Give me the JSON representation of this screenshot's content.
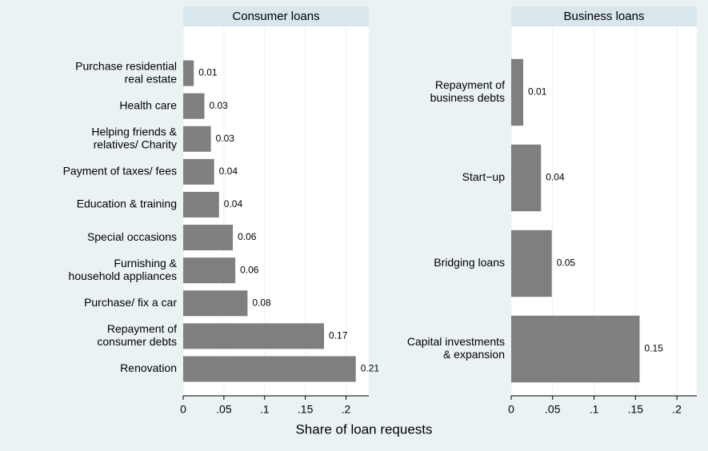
{
  "chart_data": [
    {
      "type": "barh",
      "title": "Consumer loans",
      "categories": [
        [
          "Purchase residential",
          "real estate"
        ],
        [
          "Health care"
        ],
        [
          "Helping friends &",
          "relatives/ Charity"
        ],
        [
          "Payment of taxes/ fees"
        ],
        [
          "Education & training"
        ],
        [
          "Special occasions"
        ],
        [
          "Furnishing &",
          "household appliances"
        ],
        [
          "Purchase/ fix a car"
        ],
        [
          "Repayment of",
          "consumer debts"
        ],
        [
          "Renovation"
        ]
      ],
      "values": [
        0.013,
        0.026,
        0.034,
        0.038,
        0.044,
        0.061,
        0.064,
        0.079,
        0.173,
        0.212
      ],
      "value_labels": [
        "0.01",
        "0.03",
        "0.03",
        "0.04",
        "0.04",
        "0.06",
        "0.06",
        "0.08",
        "0.17",
        "0.21"
      ],
      "color": "#7f7f7f",
      "xlim": [
        0,
        0.228
      ],
      "xticks": [
        0,
        {
          "value": 0.05,
          "label": ".05"
        },
        {
          "value": 0.1,
          "label": ".1"
        },
        {
          "value": 0.15,
          "label": ".15"
        },
        {
          "value": 0.2,
          "label": ".2"
        }
      ],
      "grid": true
    },
    {
      "type": "barh",
      "title": "Business loans",
      "categories": [
        [
          "Repayment of",
          "business debts"
        ],
        [
          "Start−up"
        ],
        [
          "Bridging loans"
        ],
        [
          "Capital investments",
          "& expansion"
        ]
      ],
      "values": [
        0.0145,
        0.036,
        0.049,
        0.155
      ],
      "value_labels": [
        "0.01",
        "0.04",
        "0.05",
        "0.15"
      ],
      "color": "#7f7f7f",
      "xlim": [
        0,
        0.224
      ],
      "xticks": [
        0,
        {
          "value": 0.05,
          "label": ".05"
        },
        {
          "value": 0.1,
          "label": ".1"
        },
        {
          "value": 0.15,
          "label": ".15"
        },
        {
          "value": 0.2,
          "label": ".2"
        }
      ],
      "grid": true
    }
  ],
  "xlabel": "Share of loan requests"
}
